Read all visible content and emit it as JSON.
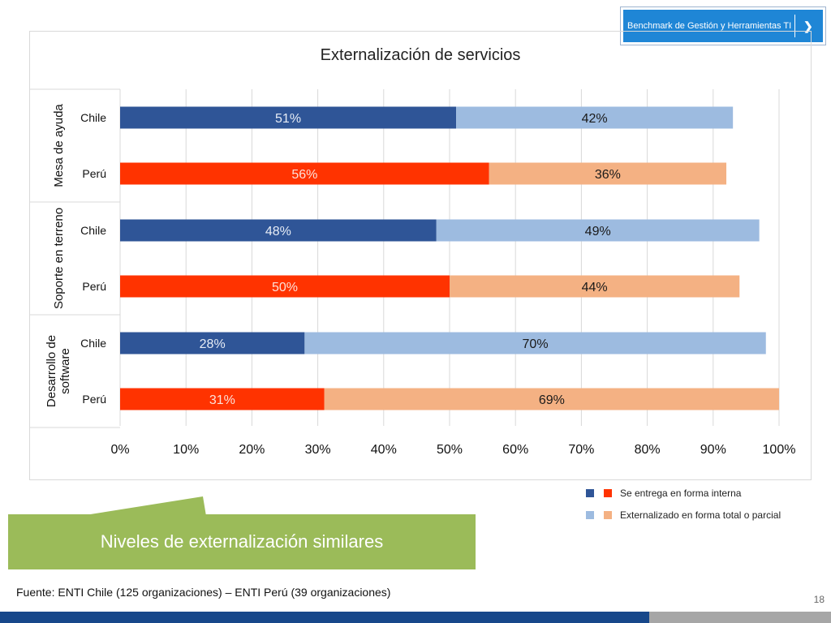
{
  "header": {
    "badge_label": "Benchmark de Gestión y Herramientas TI",
    "badge_icon": "chevron-right-icon"
  },
  "chart_data": {
    "type": "bar",
    "orientation": "horizontal",
    "stacked": true,
    "title": "Externalización de servicios",
    "x_tick_labels": [
      "0%",
      "10%",
      "20%",
      "30%",
      "40%",
      "50%",
      "60%",
      "70%",
      "80%",
      "90%",
      "100%"
    ],
    "xlim": [
      0,
      100
    ],
    "grid": true,
    "groups": [
      {
        "label": "Mesa de ayuda",
        "rows": [
          {
            "country": "Chile",
            "interna": 51,
            "externalizado": 42,
            "interna_label": "51%",
            "externalizado_label": "42%"
          },
          {
            "country": "Perú",
            "interna": 56,
            "externalizado": 36,
            "interna_label": "56%",
            "externalizado_label": "36%"
          }
        ]
      },
      {
        "label": "Soporte en terreno",
        "rows": [
          {
            "country": "Chile",
            "interna": 48,
            "externalizado": 49,
            "interna_label": "48%",
            "externalizado_label": "49%"
          },
          {
            "country": "Perú",
            "interna": 50,
            "externalizado": 44,
            "interna_label": "50%",
            "externalizado_label": "44%"
          }
        ]
      },
      {
        "label_lines": [
          "Desarrollo de",
          "software"
        ],
        "rows": [
          {
            "country": "Chile",
            "interna": 28,
            "externalizado": 70,
            "interna_label": "28%",
            "externalizado_label": "70%"
          },
          {
            "country": "Perú",
            "interna": 31,
            "externalizado": 69,
            "interna_label": "31%",
            "externalizado_label": "69%"
          }
        ]
      }
    ],
    "colors": {
      "chile_interna": "#2f5597",
      "chile_externalizado": "#9dbbe0",
      "peru_interna": "#ff3300",
      "peru_externalizado": "#f4b183"
    },
    "legend": [
      {
        "label": "Se entrega en forma interna",
        "colors": [
          "#2f5597",
          "#ff3300"
        ]
      },
      {
        "label": "Externalizado en forma total o parcial",
        "colors": [
          "#9dbbe0",
          "#f4b183"
        ]
      }
    ],
    "legend_position": "bottom-right"
  },
  "callout": {
    "text": "Niveles de externalización similares",
    "color": "#9bbb59"
  },
  "footer": {
    "source": "Fuente: ENTI Chile (125 organizaciones) – ENTI Perú (39 organizaciones)",
    "page_number": "18",
    "bar_color": "#17478a"
  }
}
